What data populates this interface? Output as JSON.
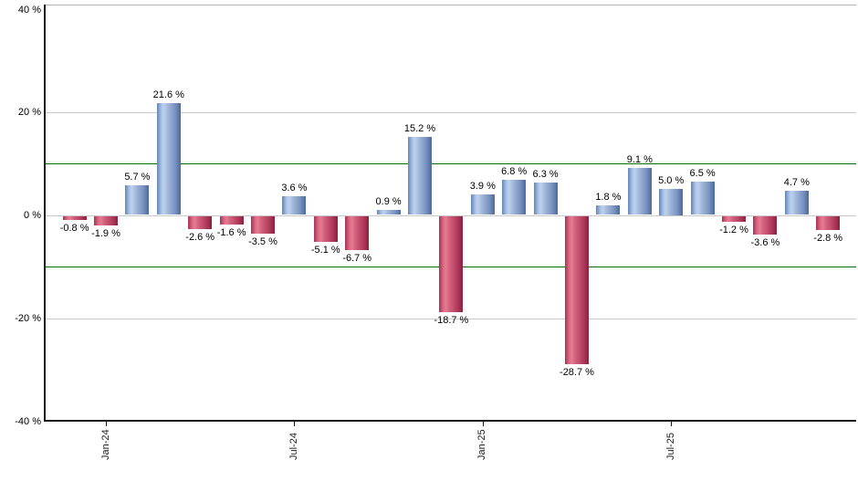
{
  "chart_data": {
    "type": "bar",
    "title": "",
    "xlabel": "",
    "ylabel": "",
    "ylim": [
      -40,
      40
    ],
    "grid": true,
    "legend": "none",
    "y_axis_ticks": [
      {
        "value": 40,
        "label": "40 %"
      },
      {
        "value": 20,
        "label": "20 %"
      },
      {
        "value": 0,
        "label": "0 %"
      },
      {
        "value": -20,
        "label": "-20 %"
      },
      {
        "value": -40,
        "label": "-40 %"
      }
    ],
    "x_axis_ticks": [
      {
        "bar_index": 1,
        "label": "Jan-24"
      },
      {
        "bar_index": 7,
        "label": "Jul-24"
      },
      {
        "bar_index": 13,
        "label": "Jan-25"
      },
      {
        "bar_index": 19,
        "label": "Jul-25"
      }
    ],
    "gridline_values": [
      20,
      0,
      -20
    ],
    "reference_lines": [
      {
        "value": 10,
        "color": "#007000"
      },
      {
        "value": -10,
        "color": "#007000"
      }
    ],
    "categories": [
      "Dec-23",
      "Jan-24",
      "Feb-24",
      "Mar-24",
      "Apr-24",
      "May-24",
      "Jun-24",
      "Jul-24",
      "Aug-24",
      "Sep-24",
      "Oct-24",
      "Nov-24",
      "Dec-24",
      "Jan-25",
      "Feb-25",
      "Mar-25",
      "Apr-25",
      "May-25",
      "Jun-25",
      "Jul-25",
      "Aug-25",
      "Sep-25",
      "Oct-25",
      "Nov-25",
      "Dec-25"
    ],
    "values": [
      -0.8,
      -1.9,
      5.7,
      21.6,
      -2.6,
      -1.6,
      -3.5,
      3.6,
      -5.1,
      -6.7,
      0.9,
      15.2,
      -18.7,
      3.9,
      6.8,
      6.3,
      -28.7,
      1.8,
      9.1,
      5.0,
      6.5,
      -1.2,
      -3.6,
      4.7,
      -2.8
    ],
    "value_labels": [
      "-0.8 %",
      "-1.9 %",
      "5.7 %",
      "21.6 %",
      "-2.6 %",
      "-1.6 %",
      "-3.5 %",
      "3.6 %",
      "-5.1 %",
      "-6.7 %",
      "0.9 %",
      "15.2 %",
      "-18.7 %",
      "3.9 %",
      "6.8 %",
      "6.3 %",
      "-28.7 %",
      "1.8 %",
      "9.1 %",
      "5.0 %",
      "6.5 %",
      "-1.2 %",
      "-3.6 %",
      "4.7 %",
      "-2.8 %"
    ],
    "colors": {
      "positive_bar": "#8faacf",
      "negative_bar": "#c24d6d",
      "reference_line": "#007000",
      "gridline": "#c9c9c9",
      "axis": "#1a1a1a",
      "label_text": "#000000"
    }
  }
}
